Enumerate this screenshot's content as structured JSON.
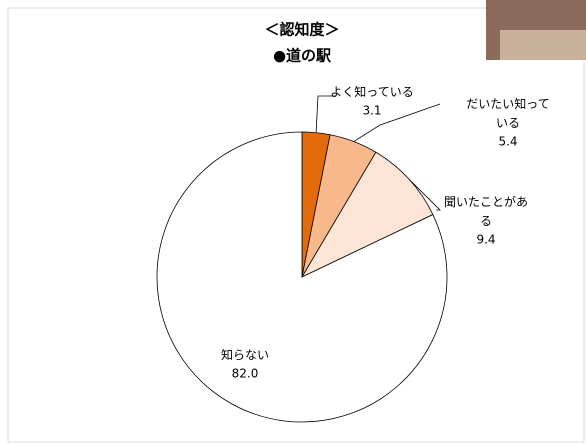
{
  "chart_data": {
    "type": "pie",
    "title": "＜認知度＞",
    "subtitle": "●道の駅",
    "categories": [
      "よく知っている",
      "だいたい知っている",
      "聞いたことがある",
      "知らない"
    ],
    "values": [
      3.1,
      5.4,
      9.4,
      82.0
    ],
    "value_labels": [
      "3.1",
      "5.4",
      "9.4",
      "82.0"
    ],
    "colors": [
      "#e36c0a",
      "#f7b98c",
      "#fce4d6",
      "#ffffff"
    ]
  }
}
